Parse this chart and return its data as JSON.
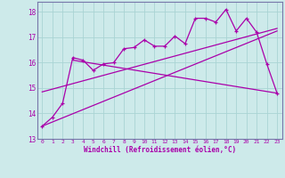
{
  "xlabel": "Windchill (Refroidissement éolien,°C)",
  "bg_color": "#cdeaea",
  "line_color": "#aa00aa",
  "grid_color": "#aad4d4",
  "spine_color": "#7777aa",
  "xlim": [
    -0.5,
    23.5
  ],
  "ylim": [
    13.0,
    18.4
  ],
  "xticks": [
    0,
    1,
    2,
    3,
    4,
    5,
    6,
    7,
    8,
    9,
    10,
    11,
    12,
    13,
    14,
    15,
    16,
    17,
    18,
    19,
    20,
    21,
    22,
    23
  ],
  "yticks": [
    13,
    14,
    15,
    16,
    17,
    18
  ],
  "data_x": [
    0,
    1,
    2,
    3,
    4,
    5,
    6,
    7,
    8,
    9,
    10,
    11,
    12,
    13,
    14,
    15,
    16,
    17,
    18,
    19,
    20,
    21,
    22,
    23
  ],
  "data_y": [
    13.5,
    13.85,
    14.4,
    16.2,
    16.1,
    15.7,
    15.95,
    16.0,
    16.55,
    16.6,
    16.9,
    16.65,
    16.65,
    17.05,
    16.75,
    17.75,
    17.75,
    17.6,
    18.1,
    17.25,
    17.75,
    17.2,
    15.95,
    14.8
  ],
  "line1_x": [
    0,
    23
  ],
  "line1_y": [
    13.5,
    17.25
  ],
  "line2_x": [
    0,
    23
  ],
  "line2_y": [
    14.85,
    17.35
  ],
  "line3_x": [
    3,
    23
  ],
  "line3_y": [
    16.1,
    14.8
  ]
}
